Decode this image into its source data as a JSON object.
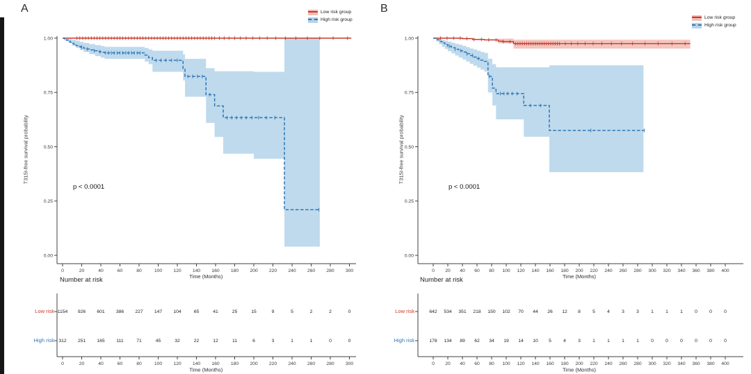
{
  "legend": {
    "low": "Low risk group",
    "high": "High risk group"
  },
  "colors": {
    "low_line": "#c5392b",
    "low_band": "#f1bcb4",
    "high_line": "#2f76b5",
    "high_band": "#b4d3ea",
    "axis": "#3f3f3f",
    "tick_text": "#3a3a3a",
    "risk_number": "#222222"
  },
  "chart_data": [
    {
      "type": "line",
      "label": "A",
      "p_value": "p < 0.0001",
      "ylabel": "T315I-free survival probability",
      "xlabel": "Time (Months)",
      "x_ticks": [
        0,
        20,
        40,
        60,
        80,
        100,
        120,
        140,
        160,
        180,
        200,
        220,
        240,
        260,
        280,
        300
      ],
      "y_ticks": [
        "1.00",
        "0.75",
        "0.50",
        "0.25",
        "0.00"
      ],
      "xlim": [
        0,
        300
      ],
      "ylim": [
        0,
        1
      ],
      "series": [
        {
          "name": "Low risk",
          "style": "solid",
          "steps": [
            [
              0,
              1.0
            ],
            [
              302,
              1.0
            ]
          ],
          "censors": [
            15,
            18,
            21,
            24,
            27,
            30,
            33,
            36,
            39,
            42,
            45,
            48,
            51,
            54,
            57,
            60,
            63,
            66,
            69,
            72,
            75,
            78,
            81,
            84,
            87,
            90,
            93,
            96,
            99,
            102,
            105,
            108,
            111,
            114,
            117,
            120,
            123,
            126,
            129,
            132,
            135,
            138,
            141,
            144,
            147,
            150,
            153,
            156,
            159,
            164,
            169,
            174,
            180,
            186,
            192,
            199,
            206,
            214,
            223,
            233,
            244,
            256,
            269,
            283,
            298
          ],
          "ci": []
        },
        {
          "name": "High risk",
          "style": "dashed",
          "steps": [
            [
              0,
              1.0
            ],
            [
              2,
              0.996
            ],
            [
              4,
              0.991
            ],
            [
              6,
              0.986
            ],
            [
              8,
              0.981
            ],
            [
              10,
              0.976
            ],
            [
              12,
              0.971
            ],
            [
              14,
              0.966
            ],
            [
              16,
              0.962
            ],
            [
              19,
              0.958
            ],
            [
              22,
              0.954
            ],
            [
              25,
              0.95
            ],
            [
              28,
              0.946
            ],
            [
              32,
              0.942
            ],
            [
              36,
              0.938
            ],
            [
              40,
              0.935
            ],
            [
              44,
              0.932
            ],
            [
              86,
              0.922
            ],
            [
              90,
              0.91
            ],
            [
              94,
              0.898
            ],
            [
              126,
              0.858
            ],
            [
              128,
              0.824
            ],
            [
              150,
              0.74
            ],
            [
              159,
              0.688
            ],
            [
              168,
              0.634
            ],
            [
              232,
              0.21
            ],
            [
              269,
              0.21
            ]
          ],
          "censors": [
            20,
            26,
            33,
            39,
            45,
            48,
            51,
            54,
            57,
            60,
            63,
            66,
            69,
            72,
            75,
            78,
            81,
            98,
            103,
            108,
            114,
            120,
            131,
            136,
            141,
            146,
            154,
            172,
            177,
            182,
            187,
            192,
            198,
            205,
            213,
            222,
            268
          ],
          "ci": [
            [
              0,
              1.0,
              1.0
            ],
            [
              3,
              0.998,
              0.988
            ],
            [
              6,
              0.996,
              0.978
            ],
            [
              10,
              0.992,
              0.965
            ],
            [
              14,
              0.988,
              0.955
            ],
            [
              18,
              0.983,
              0.945
            ],
            [
              22,
              0.978,
              0.936
            ],
            [
              28,
              0.973,
              0.926
            ],
            [
              34,
              0.968,
              0.917
            ],
            [
              40,
              0.964,
              0.91
            ],
            [
              44,
              0.96,
              0.905
            ],
            [
              86,
              0.955,
              0.892
            ],
            [
              90,
              0.948,
              0.88
            ],
            [
              94,
              0.942,
              0.845
            ],
            [
              126,
              0.925,
              0.805
            ],
            [
              128,
              0.905,
              0.73
            ],
            [
              150,
              0.862,
              0.61
            ],
            [
              159,
              0.848,
              0.545
            ],
            [
              168,
              0.848,
              0.468
            ],
            [
              200,
              0.845,
              0.445
            ],
            [
              232,
              1.0,
              0.04
            ],
            [
              269,
              1.0,
              0.04
            ]
          ]
        }
      ],
      "risk_table": {
        "title": "Number at risk",
        "rows": [
          {
            "label": "Low risk",
            "values": [
              1154,
              926,
              601,
              386,
              227,
              147,
              104,
              65,
              41,
              25,
              15,
              9,
              5,
              2,
              2,
              0
            ]
          },
          {
            "label": "High risk",
            "values": [
              312,
              251,
              165,
              111,
              71,
              45,
              32,
              22,
              12,
              11,
              6,
              3,
              1,
              1,
              0,
              0
            ]
          }
        ]
      }
    },
    {
      "type": "line",
      "label": "B",
      "p_value": "p < 0.0001",
      "ylabel": "T315I-free survival probability",
      "xlabel": "Time (Months)",
      "x_ticks": [
        0,
        20,
        40,
        60,
        80,
        100,
        120,
        140,
        160,
        180,
        200,
        220,
        240,
        260,
        280,
        300,
        320,
        340,
        360,
        380,
        400
      ],
      "y_ticks": [
        "1.00",
        "0.75",
        "0.50",
        "0.25",
        "0.00"
      ],
      "xlim": [
        0,
        400
      ],
      "ylim": [
        0,
        1
      ],
      "series": [
        {
          "name": "Low risk",
          "style": "solid",
          "steps": [
            [
              0,
              1.0
            ],
            [
              40,
              0.998
            ],
            [
              54,
              0.994
            ],
            [
              70,
              0.992
            ],
            [
              89,
              0.986
            ],
            [
              95,
              0.984
            ],
            [
              110,
              0.975
            ],
            [
              352,
              0.975
            ]
          ],
          "censors": [
            10,
            19,
            28,
            37,
            46,
            56,
            66,
            76,
            86,
            96,
            105,
            113,
            116,
            119,
            122,
            125,
            128,
            131,
            134,
            137,
            140,
            143,
            146,
            149,
            152,
            155,
            158,
            161,
            164,
            167,
            170,
            173,
            181,
            189,
            198,
            208,
            219,
            231,
            244,
            258,
            273,
            290,
            308,
            327,
            345
          ],
          "ci": [
            [
              89,
              0.998,
              0.976
            ],
            [
              110,
              0.993,
              0.952
            ],
            [
              352,
              0.993,
              0.952
            ]
          ]
        },
        {
          "name": "High risk",
          "style": "dashed",
          "steps": [
            [
              0,
              1.0
            ],
            [
              4,
              0.993
            ],
            [
              8,
              0.985
            ],
            [
              12,
              0.978
            ],
            [
              16,
              0.97
            ],
            [
              20,
              0.963
            ],
            [
              25,
              0.956
            ],
            [
              30,
              0.949
            ],
            [
              35,
              0.942
            ],
            [
              40,
              0.936
            ],
            [
              45,
              0.928
            ],
            [
              50,
              0.92
            ],
            [
              55,
              0.913
            ],
            [
              60,
              0.906
            ],
            [
              65,
              0.899
            ],
            [
              70,
              0.893
            ],
            [
              75,
              0.824
            ],
            [
              81,
              0.77
            ],
            [
              86,
              0.745
            ],
            [
              124,
              0.69
            ],
            [
              159,
              0.575
            ],
            [
              289,
              0.575
            ]
          ],
          "censors": [
            22,
            30,
            38,
            46,
            54,
            62,
            77,
            92,
            97,
            102,
            108,
            115,
            133,
            147,
            216,
            289
          ],
          "ci": [
            [
              0,
              1.0,
              1.0
            ],
            [
              4,
              0.998,
              0.985
            ],
            [
              8,
              0.996,
              0.972
            ],
            [
              12,
              0.992,
              0.96
            ],
            [
              16,
              0.988,
              0.95
            ],
            [
              20,
              0.984,
              0.94
            ],
            [
              25,
              0.979,
              0.93
            ],
            [
              30,
              0.974,
              0.92
            ],
            [
              35,
              0.97,
              0.911
            ],
            [
              40,
              0.965,
              0.902
            ],
            [
              45,
              0.959,
              0.892
            ],
            [
              50,
              0.953,
              0.882
            ],
            [
              55,
              0.948,
              0.873
            ],
            [
              60,
              0.942,
              0.864
            ],
            [
              65,
              0.937,
              0.855
            ],
            [
              70,
              0.932,
              0.846
            ],
            [
              75,
              0.905,
              0.75
            ],
            [
              81,
              0.88,
              0.69
            ],
            [
              86,
              0.866,
              0.626
            ],
            [
              124,
              0.866,
              0.546
            ],
            [
              159,
              0.875,
              0.383
            ],
            [
              288,
              0.875,
              0.383
            ]
          ]
        }
      ],
      "risk_table": {
        "title": "Number at risk",
        "rows": [
          {
            "label": "Low risk",
            "values": [
              642,
              534,
              351,
              218,
              150,
              102,
              70,
              44,
              26,
              12,
              8,
              5,
              4,
              3,
              3,
              1,
              1,
              1,
              0,
              0,
              0
            ]
          },
          {
            "label": "High risk",
            "values": [
              178,
              134,
              89,
              62,
              34,
              19,
              14,
              10,
              5,
              4,
              3,
              1,
              1,
              1,
              1,
              0,
              0,
              0,
              0,
              0,
              0
            ]
          }
        ]
      }
    }
  ]
}
